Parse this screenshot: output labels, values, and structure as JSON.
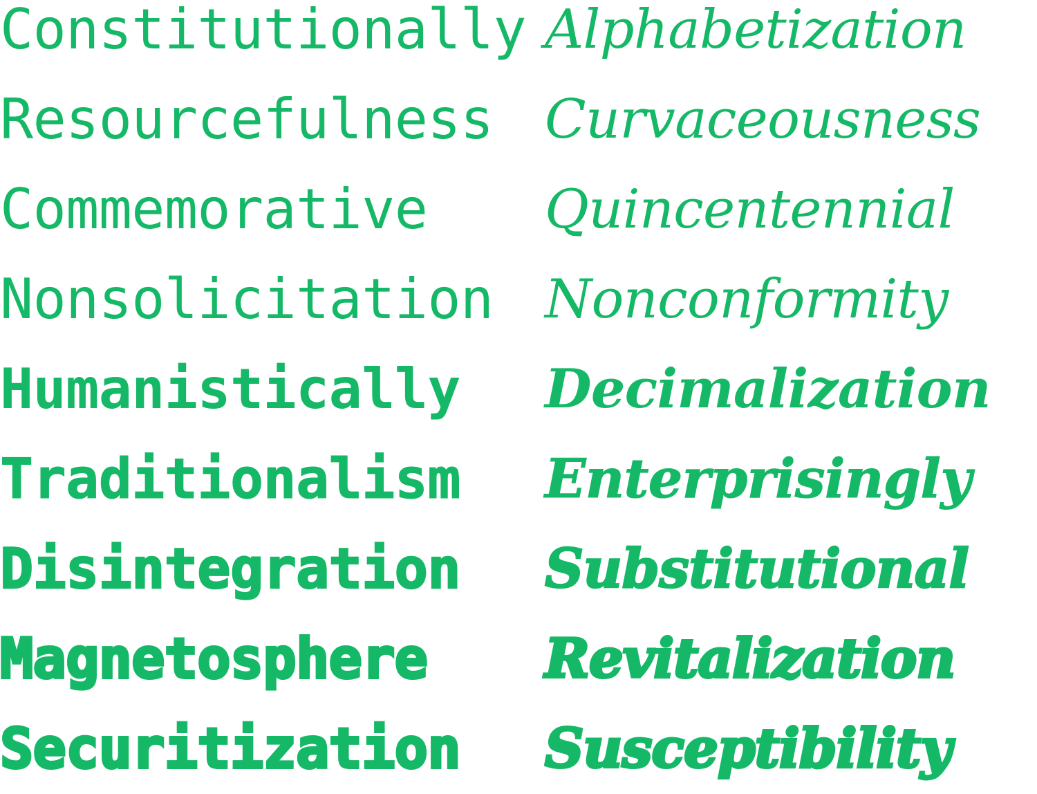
{
  "colors": {
    "accent": "#15b866",
    "background": "#ffffff"
  },
  "upright": [
    "Constitutionally",
    "Resourcefulness",
    "Commemorative",
    "Nonsolicitation",
    "Humanistically",
    "Traditionalism",
    "Disintegration",
    "Magnetosphere",
    "Securitization"
  ],
  "italic": [
    "Alphabetization",
    "Curvaceousness",
    "Quincentennial",
    "Nonconformity",
    "Decimalization",
    "Enterprisingly",
    "Substitutional",
    "Revitalization",
    "Susceptibility"
  ]
}
